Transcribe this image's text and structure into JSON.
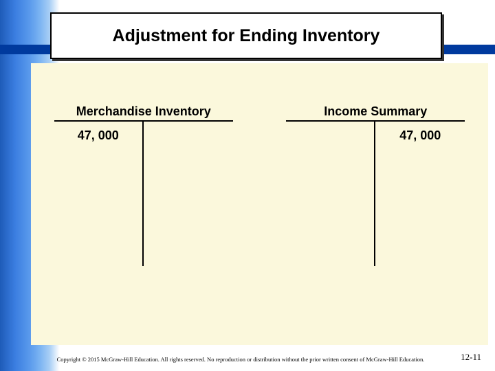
{
  "title": "Adjustment for Ending Inventory",
  "accounts": {
    "left": {
      "name": "Merchandise Inventory",
      "debit": "47, 000",
      "credit": ""
    },
    "right": {
      "name": "Income Summary",
      "debit": "",
      "credit": "47, 000"
    }
  },
  "footer": {
    "copyright": "Copyright © 2015 McGraw-Hill Education. All rights reserved. No reproduction or distribution without the prior written consent of McGraw-Hill Education.",
    "page": "12-11"
  },
  "colors": {
    "title_bg": "#ffffff",
    "title_border": "#000000",
    "bar": "#003a9e",
    "content_bg": "#fbf8dc"
  }
}
